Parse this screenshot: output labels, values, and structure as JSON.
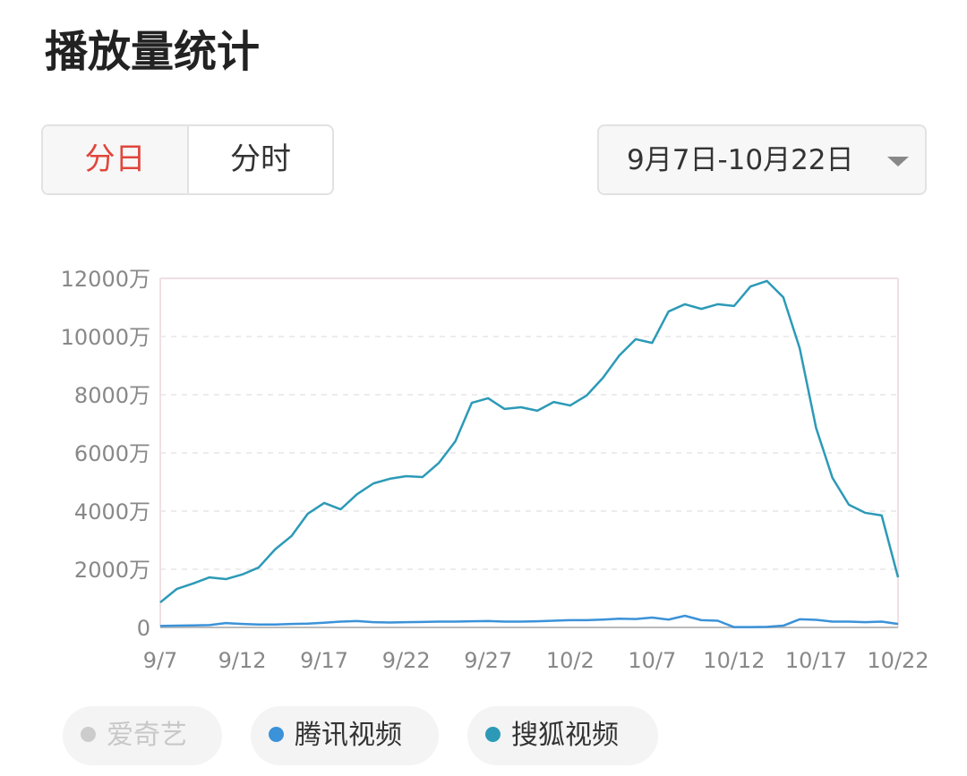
{
  "header": {
    "title": "播放量统计"
  },
  "controls": {
    "tabs": [
      "分日",
      "分时"
    ],
    "active_tab": 0,
    "date_range": "9月7日-10月22日"
  },
  "chart_data": {
    "type": "line",
    "categories": [
      "9/7",
      null,
      null,
      null,
      null,
      "9/12",
      null,
      null,
      null,
      null,
      "9/17",
      null,
      null,
      null,
      null,
      "9/22",
      null,
      null,
      null,
      null,
      "9/27",
      null,
      null,
      null,
      null,
      "10/2",
      null,
      null,
      null,
      null,
      "10/7",
      null,
      null,
      null,
      null,
      "10/12",
      null,
      null,
      null,
      null,
      "10/17",
      null,
      null,
      null,
      null,
      "10/22"
    ],
    "series": [
      {
        "name": "爱奇艺",
        "color": "#cccccc",
        "visible": false,
        "values": [
          null,
          null,
          null,
          null,
          null,
          null,
          null,
          null,
          null,
          null,
          null,
          null,
          null,
          null,
          null,
          null,
          null,
          null,
          null,
          null,
          null,
          null,
          null,
          null,
          null,
          null,
          null,
          null,
          null,
          null,
          null,
          null,
          null,
          null,
          null,
          null,
          null,
          null,
          null,
          null,
          null,
          null,
          null,
          null,
          null,
          null
        ]
      },
      {
        "name": "腾讯视频",
        "color": "#3b92d8",
        "visible": true,
        "values": [
          50,
          60,
          70,
          80,
          150,
          120,
          100,
          100,
          120,
          130,
          160,
          200,
          220,
          180,
          170,
          180,
          190,
          200,
          200,
          210,
          220,
          200,
          200,
          210,
          230,
          250,
          250,
          270,
          300,
          290,
          340,
          270,
          400,
          250,
          230,
          10,
          10,
          20,
          60,
          280,
          260,
          200,
          200,
          180,
          200,
          120
        ]
      },
      {
        "name": "搜狐视频",
        "color": "#2c9ab7",
        "visible": true,
        "values": [
          860,
          1320,
          1510,
          1720,
          1660,
          1820,
          2060,
          2680,
          3140,
          3910,
          4280,
          4060,
          4580,
          4950,
          5110,
          5200,
          5170,
          5660,
          6400,
          7720,
          7880,
          7510,
          7570,
          7450,
          7750,
          7630,
          7970,
          8580,
          9350,
          9910,
          9780,
          10860,
          11110,
          10950,
          11110,
          11050,
          11720,
          11910,
          11350,
          9600,
          6860,
          5140,
          4220,
          3940,
          3850,
          1720
        ]
      }
    ],
    "ylim": [
      0,
      12000
    ],
    "yticks": [
      0,
      {
        "value": 2000,
        "label": "2000万"
      },
      {
        "value": 4000,
        "label": "4000万"
      },
      {
        "value": 6000,
        "label": "6000万"
      },
      {
        "value": 8000,
        "label": "8000万"
      },
      {
        "value": 10000,
        "label": "10000万"
      },
      {
        "value": 12000,
        "label": "12000万"
      }
    ],
    "grid": true
  }
}
